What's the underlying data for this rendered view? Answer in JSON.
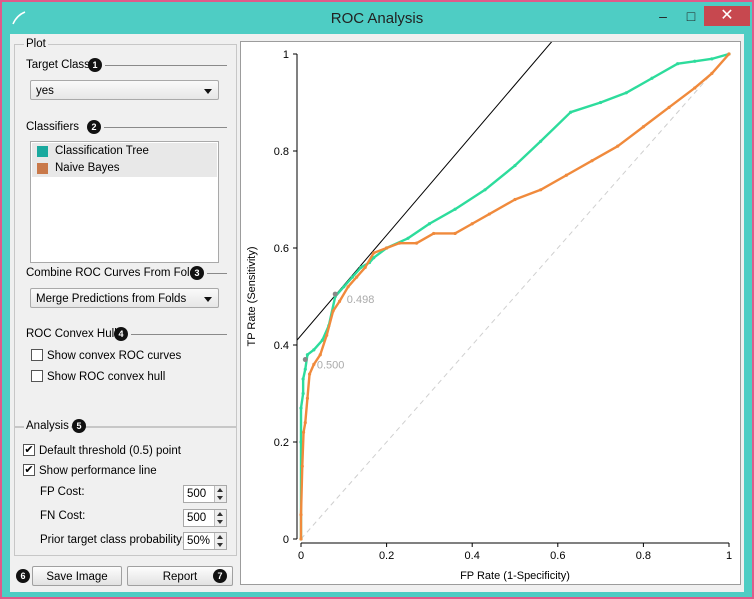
{
  "window": {
    "title": "ROC Analysis",
    "minimize": "–",
    "maximize": "□",
    "close": "✕"
  },
  "plot_section": {
    "title": "Plot",
    "target_class": {
      "label": "Target Class",
      "badge": "1",
      "value": "yes"
    },
    "classifiers": {
      "label": "Classifiers",
      "badge": "2",
      "items": [
        {
          "name": "Classification Tree",
          "color": "#1aa99e"
        },
        {
          "name": "Naive Bayes",
          "color": "#c9794a"
        }
      ]
    },
    "combine": {
      "label": "Combine ROC Curves From Folds",
      "badge": "3",
      "value": "Merge Predictions from Folds"
    },
    "convex_hull": {
      "label": "ROC Convex Hull",
      "badge": "4",
      "show_convex_curves": {
        "label": "Show convex ROC curves",
        "checked": false
      },
      "show_convex_hull": {
        "label": "Show ROC convex hull",
        "checked": false
      }
    }
  },
  "analysis_section": {
    "title": "Analysis",
    "badge": "5",
    "default_threshold": {
      "label": "Default threshold (0.5) point",
      "checked": true
    },
    "performance_line": {
      "label": "Show performance line",
      "checked": true
    },
    "fp_cost": {
      "label": "FP Cost:",
      "value": "500"
    },
    "fn_cost": {
      "label": "FN Cost:",
      "value": "500"
    },
    "prior": {
      "label": "Prior target class probability:",
      "value": "50%"
    }
  },
  "footer": {
    "save_image": {
      "label": "Save Image",
      "badge": "6"
    },
    "report": {
      "label": "Report",
      "badge": "7"
    }
  },
  "chart_data": {
    "type": "line",
    "xlabel": "FP Rate (1-Specificity)",
    "ylabel": "TP Rate (Sensitivity)",
    "xlim": [
      0,
      1
    ],
    "ylim": [
      0,
      1
    ],
    "xticks": [
      "0",
      "0.2",
      "0.4",
      "0.6",
      "0.8",
      "1"
    ],
    "yticks": [
      "0",
      "0.2",
      "0.4",
      "0.6",
      "0.8",
      "1"
    ],
    "grid": false,
    "series": [
      {
        "name": "Classification Tree",
        "color": "#2ddc9c",
        "x": [
          0,
          0.0,
          0.0,
          0.005,
          0.005,
          0.01,
          0.015,
          0.03,
          0.05,
          0.065,
          0.08,
          0.1,
          0.12,
          0.14,
          0.16,
          0.17,
          0.2,
          0.25,
          0.3,
          0.36,
          0.43,
          0.5,
          0.56,
          0.63,
          0.7,
          0.76,
          0.82,
          0.88,
          0.92,
          0.96,
          1.0
        ],
        "y": [
          0,
          0.2,
          0.27,
          0.3,
          0.33,
          0.35,
          0.38,
          0.39,
          0.41,
          0.44,
          0.5,
          0.52,
          0.54,
          0.56,
          0.57,
          0.58,
          0.6,
          0.62,
          0.65,
          0.68,
          0.72,
          0.77,
          0.82,
          0.88,
          0.9,
          0.92,
          0.95,
          0.98,
          0.985,
          0.99,
          1.0
        ]
      },
      {
        "name": "Naive Bayes",
        "color": "#f08a3c",
        "x": [
          0,
          0.0,
          0.003,
          0.006,
          0.01,
          0.015,
          0.02,
          0.03,
          0.045,
          0.06,
          0.075,
          0.09,
          0.11,
          0.13,
          0.15,
          0.17,
          0.2,
          0.23,
          0.27,
          0.31,
          0.36,
          0.4,
          0.44,
          0.5,
          0.56,
          0.62,
          0.68,
          0.74,
          0.8,
          0.86,
          0.92,
          0.96,
          1.0
        ],
        "y": [
          0,
          0.05,
          0.15,
          0.22,
          0.24,
          0.29,
          0.34,
          0.36,
          0.38,
          0.42,
          0.47,
          0.49,
          0.52,
          0.54,
          0.56,
          0.59,
          0.6,
          0.61,
          0.61,
          0.63,
          0.63,
          0.65,
          0.67,
          0.7,
          0.72,
          0.75,
          0.78,
          0.81,
          0.85,
          0.89,
          0.93,
          0.96,
          1.0
        ]
      }
    ],
    "diagonal": {
      "from": [
        0,
        0
      ],
      "to": [
        1,
        1
      ],
      "style": "dashed",
      "color": "#cfcfcf"
    },
    "performance_line": {
      "from": [
        0,
        0.41
      ],
      "to": [
        0.6,
        1.04
      ],
      "color": "#000000"
    },
    "annotations": [
      {
        "text": "0.498",
        "x": 0.1,
        "y": 0.495
      },
      {
        "text": "0.500",
        "x": 0.03,
        "y": 0.36
      }
    ]
  }
}
